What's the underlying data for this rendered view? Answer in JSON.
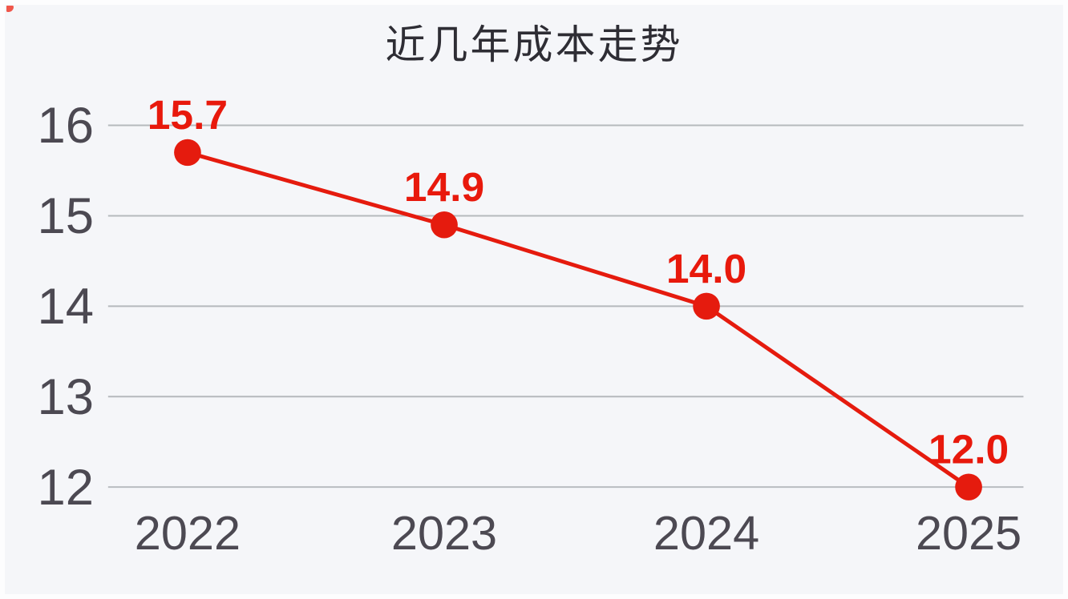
{
  "chart_data": {
    "type": "line",
    "title": "近几年成本走势",
    "categories": [
      "2022",
      "2023",
      "2024",
      "2025"
    ],
    "values": [
      15.7,
      14.9,
      14.0,
      12.0
    ],
    "point_labels": [
      "15.7",
      "14.9",
      "14.0",
      "12.0"
    ],
    "y_ticks": [
      "16",
      "15",
      "14",
      "13",
      "12"
    ],
    "ylim": [
      12,
      16
    ],
    "xlabel": "",
    "ylabel": "",
    "grid": true,
    "legend": false,
    "layout_hints": {
      "gridlines": "horizontal only",
      "data_labels_position": "above points",
      "x_labels_position": "below bottom gridline"
    },
    "colors": {
      "line": "#e51b0e",
      "point": "#e51b0e",
      "data_label": "#e8190c",
      "axis_text": "#4c4952",
      "title_text": "#2e2d34",
      "gridline": "#b5b9bd",
      "background": "#f5f6f9",
      "frame": "#fdfdfe"
    }
  }
}
